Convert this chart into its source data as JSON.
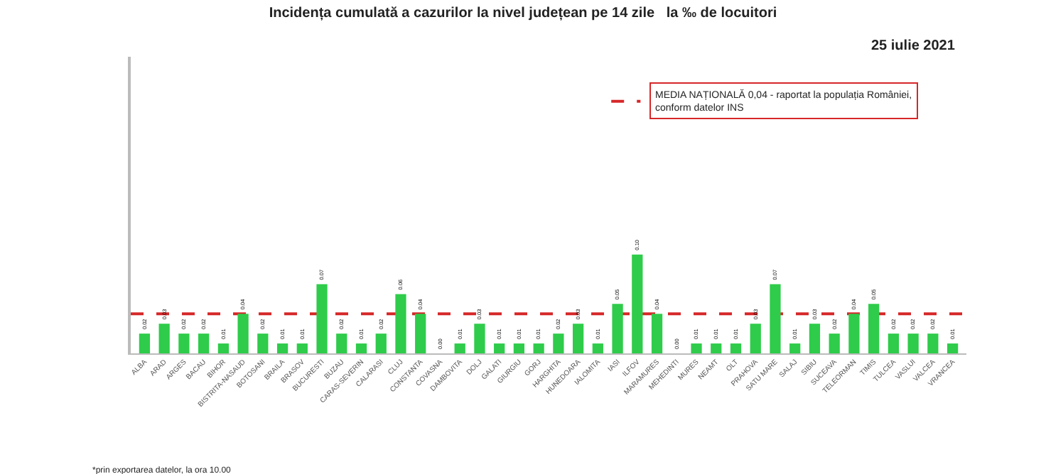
{
  "chart_data": {
    "type": "bar",
    "title": "Incidența cumulată a cazurilor la nivel județean pe 14 zile   la ‰ de locuitori",
    "subtitle": "25 iulie 2021",
    "categories": [
      "ALBA",
      "ARAD",
      "ARGES",
      "BACAU",
      "BIHOR",
      "BISTRITA-NASAUD",
      "BOTOSANI",
      "BRAILA",
      "BRASOV",
      "BUCURESTI",
      "BUZAU",
      "CARAS-SEVERIN",
      "CALARASI",
      "CLUJ",
      "CONSTANTA",
      "COVASNA",
      "DAMBOVITA",
      "DOLJ",
      "GALATI",
      "GIURGIU",
      "GORJ",
      "HARGHITA",
      "HUNEDOARA",
      "IALOMITA",
      "IASI",
      "ILFOV",
      "MARAMURES",
      "MEHEDINTI",
      "MURES",
      "NEAMT",
      "OLT",
      "PRAHOVA",
      "SATU MARE",
      "SALAJ",
      "SIBIU",
      "SUCEAVA",
      "TELEORMAN",
      "TIMIS",
      "TULCEA",
      "VASLUI",
      "VALCEA",
      "VRANCEA"
    ],
    "values": [
      0.02,
      0.03,
      0.02,
      0.02,
      0.01,
      0.04,
      0.02,
      0.01,
      0.01,
      0.07,
      0.02,
      0.01,
      0.02,
      0.06,
      0.04,
      0.0,
      0.01,
      0.03,
      0.01,
      0.01,
      0.01,
      0.02,
      0.03,
      0.01,
      0.05,
      0.1,
      0.04,
      0.0,
      0.01,
      0.01,
      0.01,
      0.03,
      0.07,
      0.01,
      0.03,
      0.02,
      0.04,
      0.05,
      0.02,
      0.02,
      0.02,
      0.01
    ],
    "value_labels": [
      "0.02",
      "0.03",
      "0.02",
      "0.02",
      "0.01",
      "0.04",
      "0.02",
      "0.01",
      "0.01",
      "0.07",
      "0.02",
      "0.01",
      "0.02",
      "0.06",
      "0.04",
      "0.00",
      "0.01",
      "0.03",
      "0.01",
      "0.01",
      "0.01",
      "0.02",
      "0.03",
      "0.01",
      "0.05",
      "0.10",
      "0.04",
      "0.00",
      "0.01",
      "0.01",
      "0.01",
      "0.03",
      "0.07",
      "0.01",
      "0.03",
      "0.02",
      "0.04",
      "0.05",
      "0.02",
      "0.02",
      "0.02",
      "0.01"
    ],
    "color": "#2ecc4a",
    "ylim": [
      0,
      0.3
    ],
    "tick_labels": "x",
    "legend": "top right",
    "ref_lines": [
      {
        "axis": "y",
        "value": 0.04,
        "label": "MEDIA NAȚIONALĂ 0,04 - raportat la populația României,\nconform datelor INS",
        "color": "#d62728",
        "line_style": "dashed"
      }
    ],
    "annotations": [
      "*prin exportarea datelor, la ora 10.00"
    ]
  }
}
